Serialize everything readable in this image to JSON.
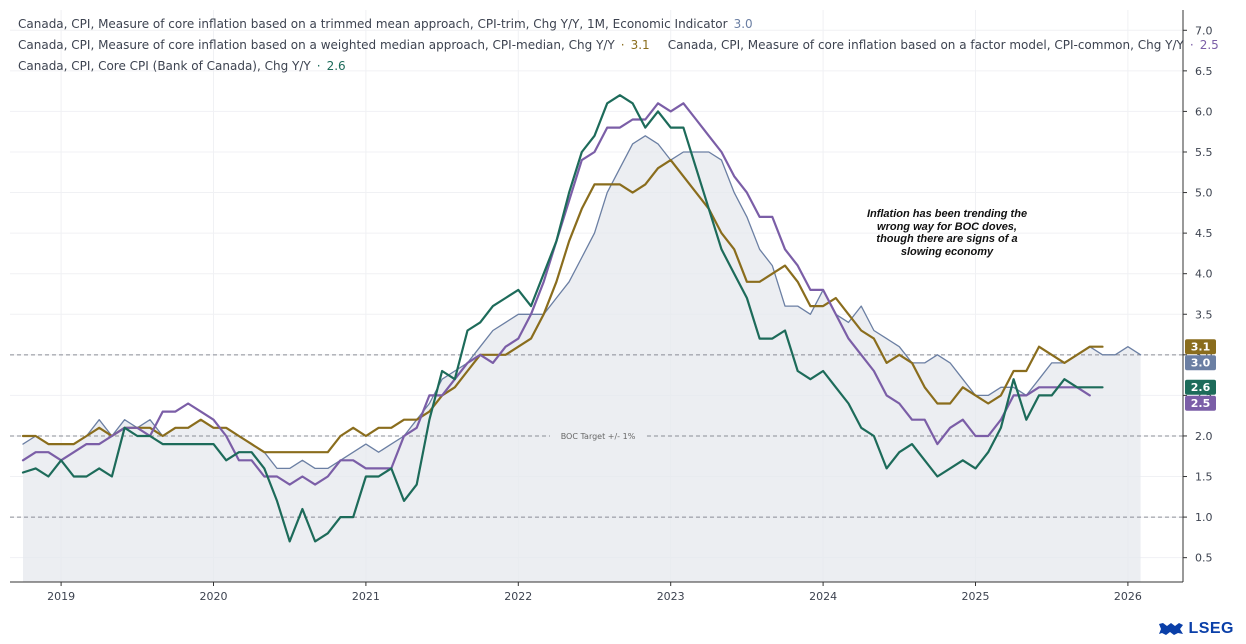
{
  "legend": {
    "trim_label": "Canada, CPI, Measure of core inflation based on a trimmed mean approach, CPI-trim, Chg Y/Y, 1M, Economic Indicator",
    "trim_value": "3.0",
    "median_label": "Canada, CPI, Measure of core inflation based on a weighted median approach, CPI-median, Chg Y/Y",
    "median_value": "3.1",
    "common_label": "Canada, CPI, Measure of core inflation based on a factor model, CPI-common, Chg Y/Y",
    "common_value": "2.5",
    "core_label": "Canada, CPI, Core CPI (Bank of Canada), Chg Y/Y",
    "core_value": "2.6",
    "dot": "·"
  },
  "annotation": {
    "lines": [
      "Inflation has been trending the",
      "wrong way for BOC doves,",
      "though there are signs of a",
      "slowing economy"
    ]
  },
  "logo_text": "LSEG",
  "colors": {
    "trim": "#6b7fa3",
    "median": "#8a6d1d",
    "common": "#7b5ea7",
    "core": "#1d6b5a",
    "area_fill": "#e6e8ee"
  },
  "chart_data": {
    "type": "line",
    "x_start": "2018-10",
    "frequency": "monthly",
    "x_ticks": [
      "2019",
      "2020",
      "2021",
      "2022",
      "2023",
      "2024",
      "2025",
      "2026"
    ],
    "y_ticks": [
      "0.5",
      "1.0",
      "1.5",
      "2.0",
      "2.5",
      "3.0",
      "3.5",
      "4.0",
      "4.5",
      "5.0",
      "5.5",
      "6.0",
      "6.5",
      "7.0"
    ],
    "ylim": [
      0.2,
      7.25
    ],
    "reference_lines": [
      {
        "y": 3.0,
        "label": ""
      },
      {
        "y": 2.0,
        "label": "BOC Target +/- 1%"
      },
      {
        "y": 1.0,
        "label": ""
      }
    ],
    "last_value_badges": [
      {
        "series": "median",
        "text": "3.1",
        "y": 3.1
      },
      {
        "series": "trim",
        "text": "3.0",
        "y": 3.0
      },
      {
        "series": "core",
        "text": "2.6",
        "y": 2.6
      },
      {
        "series": "common",
        "text": "2.5",
        "y": 2.5
      }
    ],
    "series": [
      {
        "key": "trim",
        "name": "CPI-trim",
        "values": [
          1.9,
          2.0,
          1.9,
          1.9,
          1.9,
          2.0,
          2.2,
          2.0,
          2.2,
          2.1,
          2.2,
          2.0,
          2.1,
          2.1,
          2.2,
          2.1,
          2.1,
          2.0,
          1.9,
          1.8,
          1.6,
          1.6,
          1.7,
          1.6,
          1.6,
          1.7,
          1.8,
          1.9,
          1.8,
          1.9,
          2.0,
          2.2,
          2.4,
          2.7,
          2.8,
          2.9,
          3.1,
          3.3,
          3.4,
          3.5,
          3.5,
          3.5,
          3.7,
          3.9,
          4.2,
          4.5,
          5.0,
          5.3,
          5.6,
          5.7,
          5.6,
          5.4,
          5.5,
          5.5,
          5.5,
          5.4,
          5.0,
          4.7,
          4.3,
          4.1,
          3.6,
          3.6,
          3.5,
          3.8,
          3.5,
          3.4,
          3.6,
          3.3,
          3.2,
          3.1,
          2.9,
          2.9,
          3.0,
          2.9,
          2.7,
          2.5,
          2.5,
          2.6,
          2.6,
          2.5,
          2.7,
          2.9,
          2.9,
          3.0,
          3.1,
          3.0,
          3.0,
          3.1,
          3.0
        ]
      },
      {
        "key": "median",
        "name": "CPI-median",
        "values": [
          2.0,
          2.0,
          1.9,
          1.9,
          1.9,
          2.0,
          2.1,
          2.0,
          2.1,
          2.1,
          2.1,
          2.0,
          2.1,
          2.1,
          2.2,
          2.1,
          2.1,
          2.0,
          1.9,
          1.8,
          1.8,
          1.8,
          1.8,
          1.8,
          1.8,
          2.0,
          2.1,
          2.0,
          2.1,
          2.1,
          2.2,
          2.2,
          2.3,
          2.5,
          2.6,
          2.8,
          3.0,
          3.0,
          3.0,
          3.1,
          3.2,
          3.5,
          3.9,
          4.4,
          4.8,
          5.1,
          5.1,
          5.1,
          5.0,
          5.1,
          5.3,
          5.4,
          5.2,
          5.0,
          4.8,
          4.5,
          4.3,
          3.9,
          3.9,
          4.0,
          4.1,
          3.9,
          3.6,
          3.6,
          3.7,
          3.5,
          3.3,
          3.2,
          2.9,
          3.0,
          2.9,
          2.6,
          2.4,
          2.4,
          2.6,
          2.5,
          2.4,
          2.5,
          2.8,
          2.8,
          3.1,
          3.0,
          2.9,
          3.0,
          3.1,
          3.1
        ]
      },
      {
        "key": "common",
        "name": "CPI-common",
        "values": [
          1.7,
          1.8,
          1.8,
          1.7,
          1.8,
          1.9,
          1.9,
          2.0,
          2.1,
          2.1,
          2.0,
          2.3,
          2.3,
          2.4,
          2.3,
          2.2,
          2.0,
          1.7,
          1.7,
          1.5,
          1.5,
          1.4,
          1.5,
          1.4,
          1.5,
          1.7,
          1.7,
          1.6,
          1.6,
          1.6,
          2.0,
          2.1,
          2.5,
          2.5,
          2.7,
          2.9,
          3.0,
          2.9,
          3.1,
          3.2,
          3.5,
          3.9,
          4.4,
          4.9,
          5.4,
          5.5,
          5.8,
          5.8,
          5.9,
          5.9,
          6.1,
          6.0,
          6.1,
          5.9,
          5.7,
          5.5,
          5.2,
          5.0,
          4.7,
          4.7,
          4.3,
          4.1,
          3.8,
          3.8,
          3.5,
          3.2,
          3.0,
          2.8,
          2.5,
          2.4,
          2.2,
          2.2,
          1.9,
          2.1,
          2.2,
          2.0,
          2.0,
          2.2,
          2.5,
          2.5,
          2.6,
          2.6,
          2.6,
          2.6,
          2.5
        ]
      },
      {
        "key": "core",
        "name": "Core CPI",
        "values": [
          1.55,
          1.6,
          1.5,
          1.7,
          1.5,
          1.5,
          1.6,
          1.5,
          2.1,
          2.0,
          2.0,
          1.9,
          1.9,
          1.9,
          1.9,
          1.9,
          1.7,
          1.8,
          1.8,
          1.6,
          1.2,
          0.7,
          1.1,
          0.7,
          0.8,
          1.0,
          1.0,
          1.5,
          1.5,
          1.6,
          1.2,
          1.4,
          2.2,
          2.8,
          2.7,
          3.3,
          3.4,
          3.6,
          3.7,
          3.8,
          3.6,
          4.0,
          4.4,
          5.0,
          5.5,
          5.7,
          6.1,
          6.2,
          6.1,
          5.8,
          6.0,
          5.8,
          5.8,
          5.3,
          4.8,
          4.3,
          4.0,
          3.7,
          3.2,
          3.2,
          3.3,
          2.8,
          2.7,
          2.8,
          2.6,
          2.4,
          2.1,
          2.0,
          1.6,
          1.8,
          1.9,
          1.7,
          1.5,
          1.6,
          1.7,
          1.6,
          1.8,
          2.1,
          2.7,
          2.2,
          2.5,
          2.5,
          2.7,
          2.6,
          2.6,
          2.6
        ]
      }
    ]
  }
}
